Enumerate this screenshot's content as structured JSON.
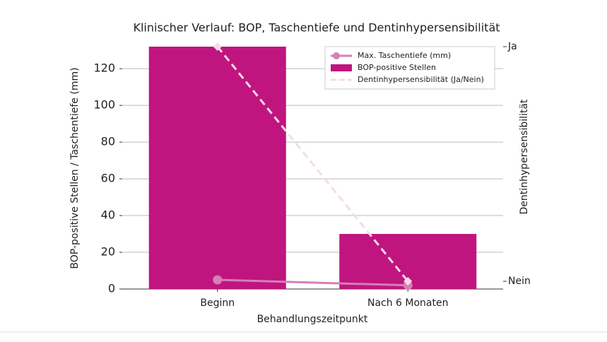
{
  "chart_data": {
    "type": "bar-line",
    "title": "Klinischer Verlauf: BOP, Taschentiefe und Dentinhypersensibilität",
    "x_label": "Behandlungszeitpunkt",
    "y_label": "BOP-positive Stellen / Taschentiefe (mm)",
    "y2_label": "Dentinhypersensibilität",
    "categories": [
      "Beginn",
      "Nach 6 Monaten"
    ],
    "series": [
      {
        "name": "Max. Taschentiefe (mm)",
        "type": "line",
        "color": "#d67fb5",
        "marker": "circle",
        "linestyle": "solid",
        "values": [
          5,
          2
        ]
      },
      {
        "name": "BOP-positive Stellen",
        "type": "bar",
        "color": "#c0157f",
        "values": [
          132,
          30
        ]
      },
      {
        "name": "Dentinhypersensibilität (Ja/Nein)",
        "type": "line",
        "axis": "y2",
        "color": "#f2dde9",
        "marker": "diamond",
        "linestyle": "dashed",
        "values": [
          1,
          0
        ]
      }
    ],
    "ylim": [
      0,
      132
    ],
    "yticks": [
      0,
      20,
      40,
      60,
      80,
      100,
      120
    ],
    "y2lim": [
      -0.033,
      1
    ],
    "y2ticks": [
      {
        "value": 0,
        "label": "Nein"
      },
      {
        "value": 1,
        "label": "Ja"
      }
    ],
    "grid": true,
    "legend": "upper right"
  }
}
